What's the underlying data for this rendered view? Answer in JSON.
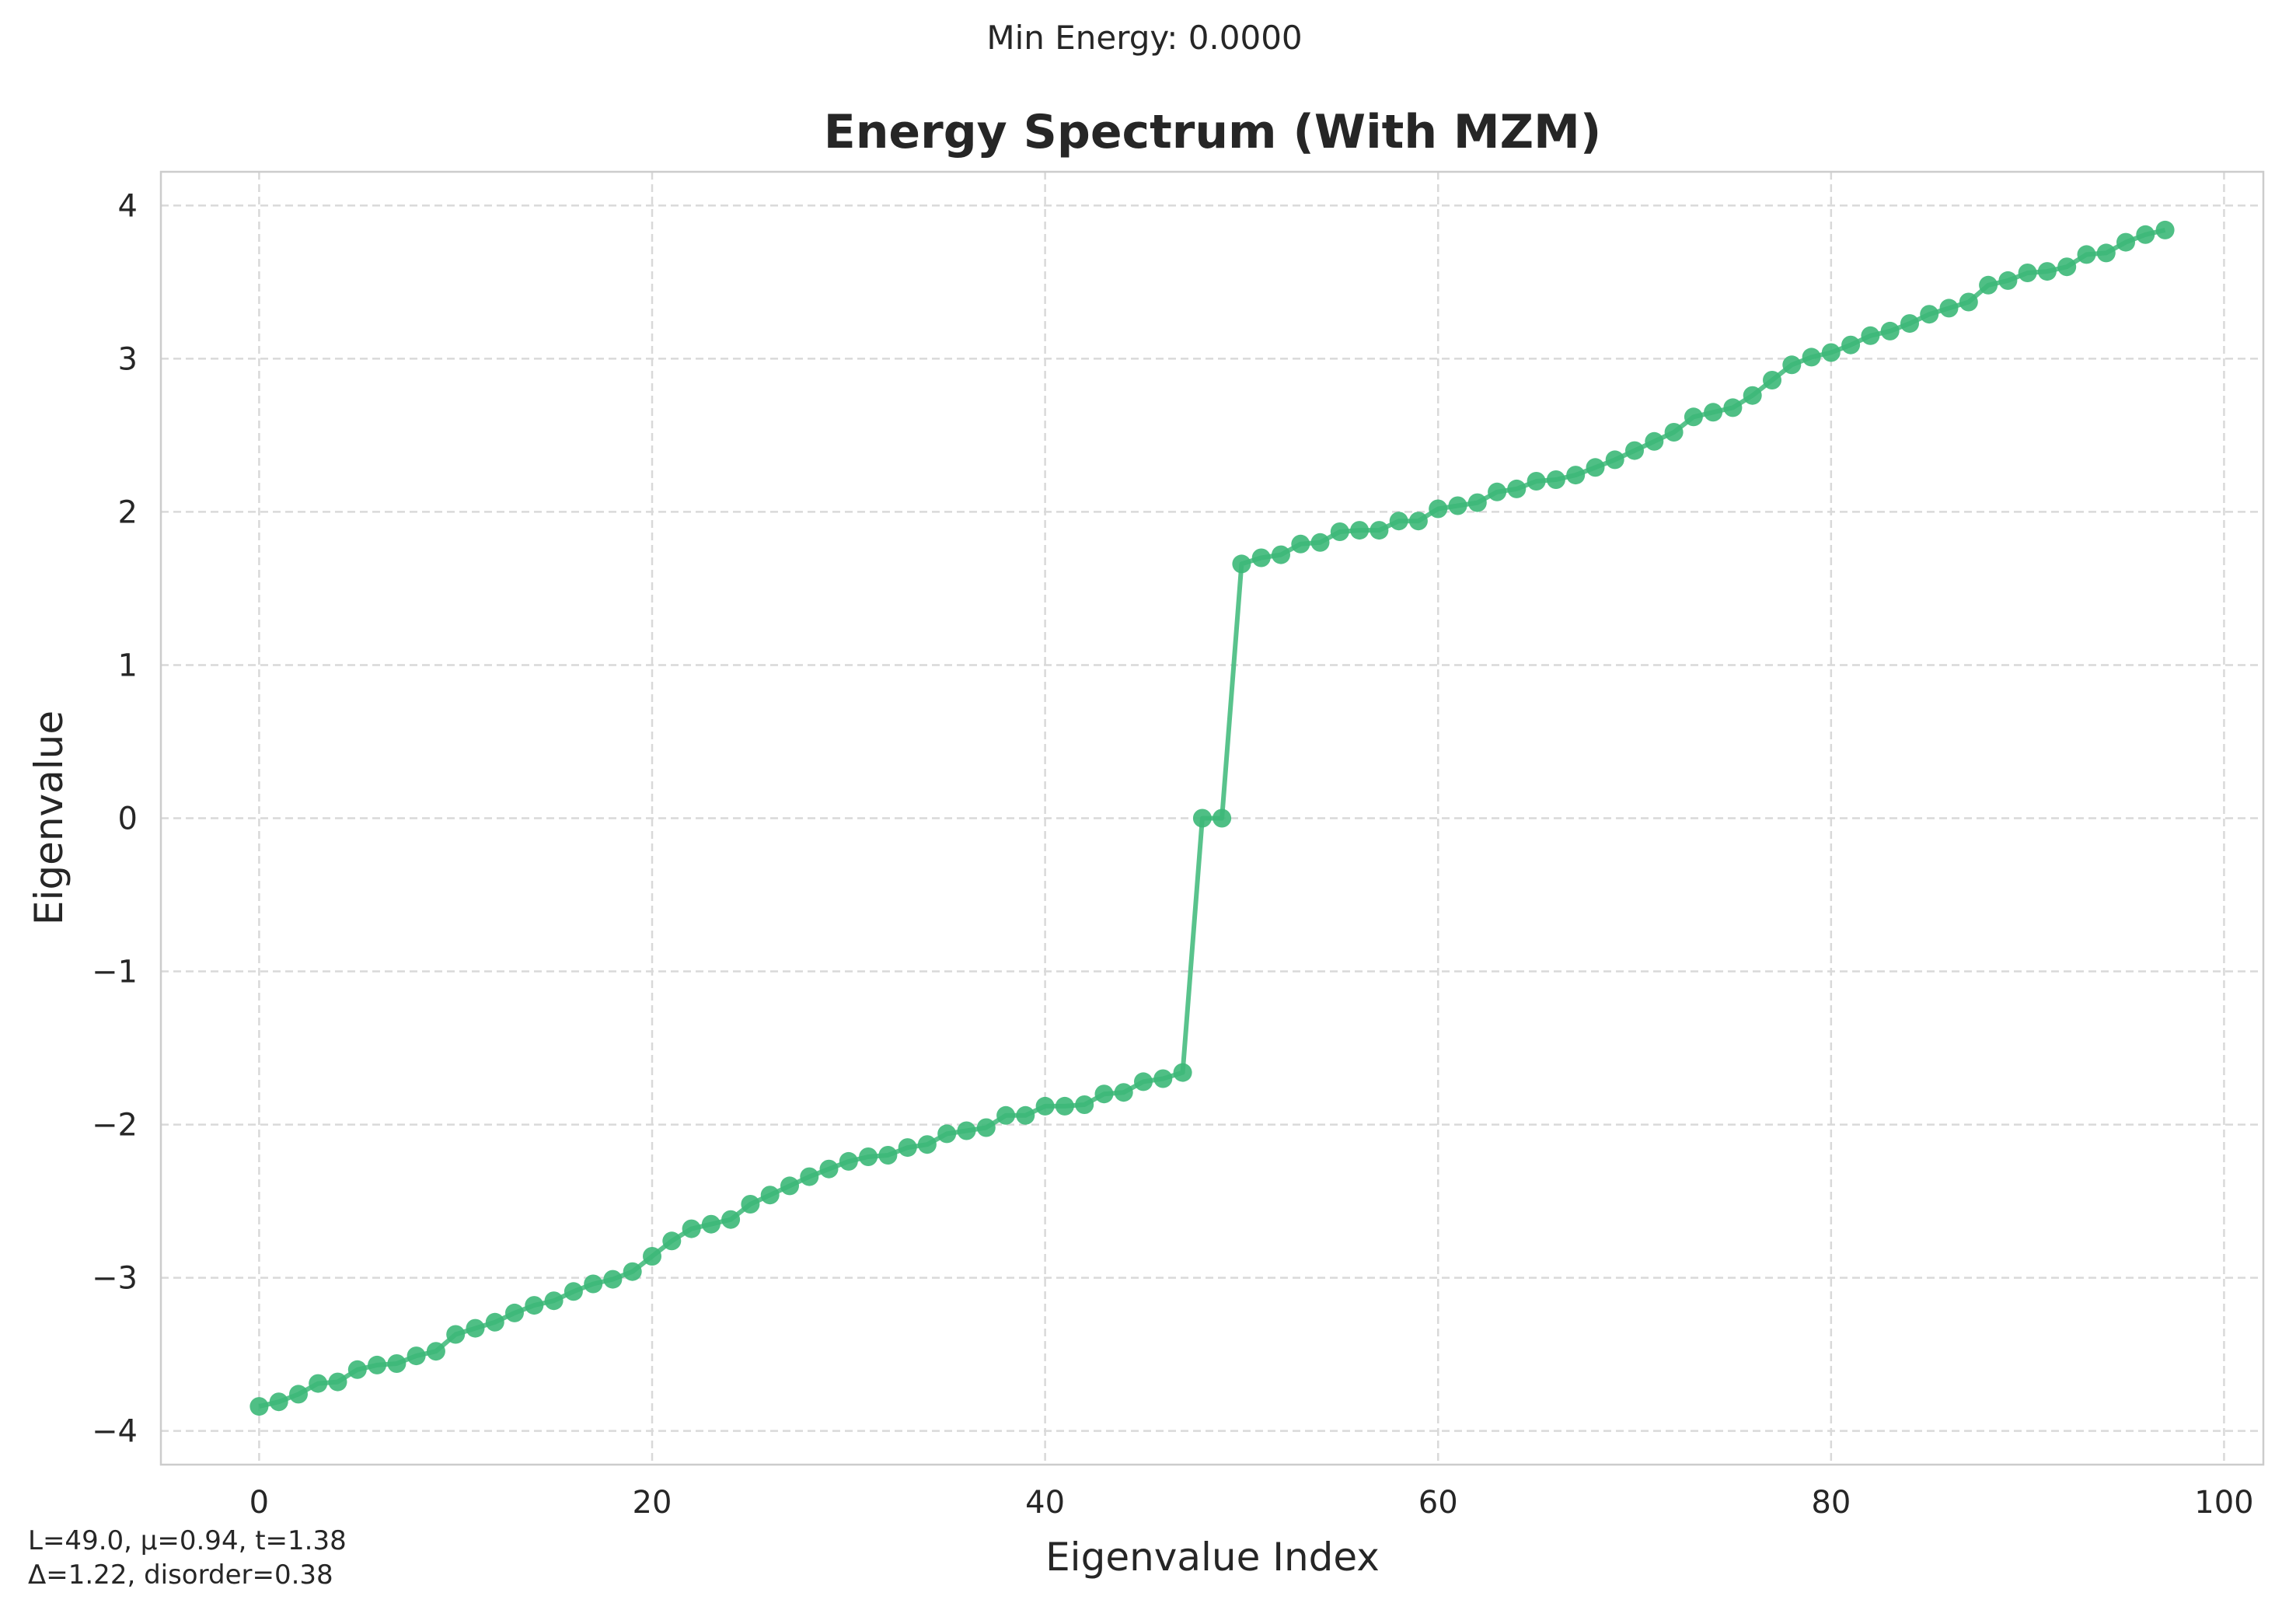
{
  "header": {
    "suptitle": "Min Energy: 0.0000"
  },
  "footer": {
    "params_line1": "L=49.0, μ=0.94, t=1.38",
    "params_line2": "Δ=1.22, disorder=0.38"
  },
  "colors": {
    "series": "#3cb878",
    "grid": "#d9d9d9",
    "axes": "#cccccc",
    "text": "#262626"
  },
  "chart_data": {
    "type": "line",
    "title": "Energy Spectrum (With MZM)",
    "xlabel": "Eigenvalue Index",
    "ylabel": "Eigenvalue",
    "xlim": [
      -5,
      102
    ],
    "ylim": [
      -4.22,
      4.22
    ],
    "xticks": [
      0,
      20,
      40,
      60,
      80,
      100
    ],
    "yticks": [
      -4,
      -3,
      -2,
      -1,
      0,
      1,
      2,
      3,
      4
    ],
    "grid": true,
    "markers": true,
    "x": [
      0,
      1,
      2,
      3,
      4,
      5,
      6,
      7,
      8,
      9,
      10,
      11,
      12,
      13,
      14,
      15,
      16,
      17,
      18,
      19,
      20,
      21,
      22,
      23,
      24,
      25,
      26,
      27,
      28,
      29,
      30,
      31,
      32,
      33,
      34,
      35,
      36,
      37,
      38,
      39,
      40,
      41,
      42,
      43,
      44,
      45,
      46,
      47,
      48,
      49,
      50,
      51,
      52,
      53,
      54,
      55,
      56,
      57,
      58,
      59,
      60,
      61,
      62,
      63,
      64,
      65,
      66,
      67,
      68,
      69,
      70,
      71,
      72,
      73,
      74,
      75,
      76,
      77,
      78,
      79,
      80,
      81,
      82,
      83,
      84,
      85,
      86,
      87,
      88,
      89,
      90,
      91,
      92,
      93,
      94,
      95,
      96,
      97
    ],
    "values": [
      -3.84,
      -3.81,
      -3.76,
      -3.69,
      -3.68,
      -3.6,
      -3.57,
      -3.56,
      -3.51,
      -3.48,
      -3.37,
      -3.33,
      -3.29,
      -3.23,
      -3.18,
      -3.15,
      -3.09,
      -3.04,
      -3.01,
      -2.96,
      -2.86,
      -2.76,
      -2.68,
      -2.65,
      -2.62,
      -2.52,
      -2.46,
      -2.4,
      -2.34,
      -2.29,
      -2.24,
      -2.21,
      -2.2,
      -2.15,
      -2.13,
      -2.06,
      -2.04,
      -2.02,
      -1.94,
      -1.94,
      -1.88,
      -1.88,
      -1.87,
      -1.8,
      -1.79,
      -1.72,
      -1.7,
      -1.66,
      0.0,
      0.0,
      1.66,
      1.7,
      1.72,
      1.79,
      1.8,
      1.87,
      1.88,
      1.88,
      1.94,
      1.94,
      2.02,
      2.04,
      2.06,
      2.13,
      2.15,
      2.2,
      2.21,
      2.24,
      2.29,
      2.34,
      2.4,
      2.46,
      2.52,
      2.62,
      2.65,
      2.68,
      2.76,
      2.86,
      2.96,
      3.01,
      3.04,
      3.09,
      3.15,
      3.18,
      3.23,
      3.29,
      3.33,
      3.37,
      3.48,
      3.51,
      3.56,
      3.57,
      3.6,
      3.68,
      3.69,
      3.76,
      3.81,
      3.84
    ]
  }
}
